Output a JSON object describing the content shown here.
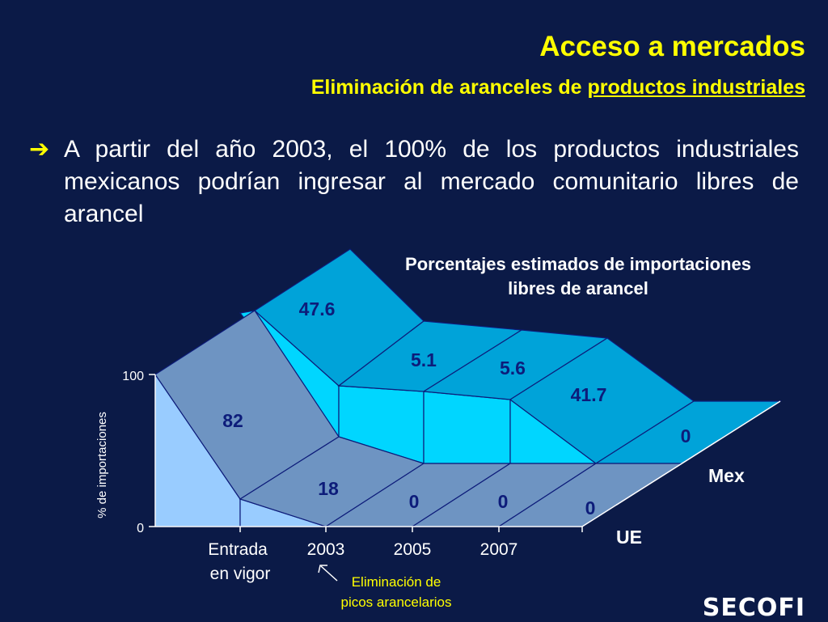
{
  "header": {
    "title": "Acceso a mercados",
    "subtitle_prefix": "Eliminación de aranceles de ",
    "subtitle_underlined": "productos industriales"
  },
  "bullet": {
    "icon": "arrow-right-icon",
    "text": "A partir del año 2003, el 100% de los productos industriales mexicanos podrían ingresar al mercado comunitario libres de arancel"
  },
  "chart_data": {
    "type": "area",
    "title": "Porcentajes estimados de importaciones libres de arancel",
    "ylabel": "% de importaciones",
    "ylim": [
      0,
      100
    ],
    "yticks": [
      "0",
      "100"
    ],
    "categories": [
      "Entrada en vigor",
      "2003",
      "2005",
      "2007"
    ],
    "series": [
      {
        "name": "UE",
        "increments": [
          82,
          18,
          0,
          0,
          0
        ],
        "color": "#4b8fc2"
      },
      {
        "name": "Mex",
        "increments": [
          47.6,
          5.1,
          5.6,
          41.7,
          0
        ],
        "color": "#00a3d9"
      }
    ],
    "annotation": {
      "line1": "Eliminación de",
      "line2": "picos arancelarios",
      "color": "#ffff00"
    }
  },
  "logo": {
    "text": "SECOFI"
  }
}
